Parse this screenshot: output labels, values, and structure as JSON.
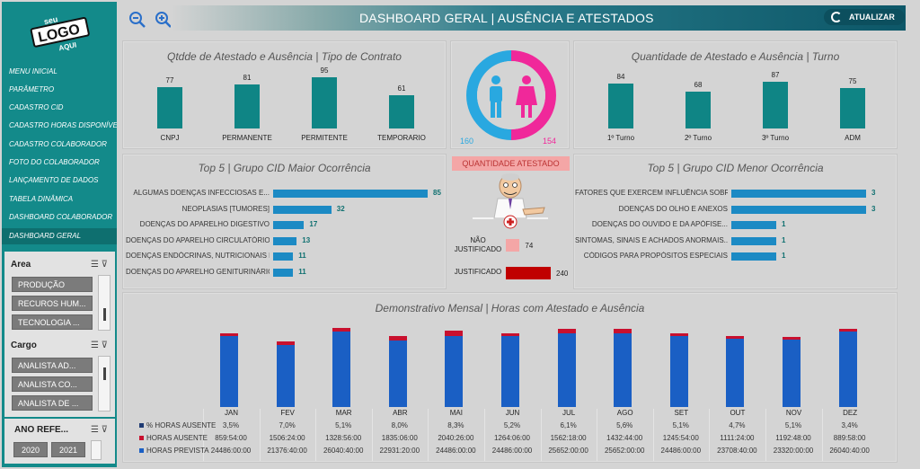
{
  "header": {
    "title": "DASHBOARD GERAL | AUSÊNCIA E ATESTADOS",
    "refresh_label": "ATUALIZAR",
    "colors": {
      "accent": "#138a8a",
      "dark": "#0d5768"
    }
  },
  "logo": {
    "top": "seu",
    "main": "LOGO",
    "bottom": "AQUI"
  },
  "menu": [
    "MENU INICIAL",
    "PARÂMETRO",
    "CADASTRO CID",
    "CADASTRO HORAS DISPONÍVEL",
    "CADASTRO COLABORADOR",
    "FOTO DO COLABORADOR",
    "LANÇAMENTO DE DADOS",
    "TABELA DINÂMICA",
    "DASHBOARD COLABORADOR",
    "DASHBOARD GERAL"
  ],
  "slicers": {
    "area": {
      "title": "Area",
      "items": [
        "PRODUÇÃO",
        "RECUROS HUM...",
        "TECNOLOGIA ..."
      ]
    },
    "cargo": {
      "title": "Cargo",
      "items": [
        "ANALISTA AD...",
        "ANALISTA CO...",
        "ANALISTA DE ..."
      ]
    },
    "ano": {
      "title": "ANO REFE...",
      "items": [
        "2020",
        "2021"
      ]
    }
  },
  "contract_chart": {
    "title": "Qtdde de Atestado e Ausência | Tipo de Contrato",
    "chart_data": {
      "type": "bar",
      "categories": [
        "CNPJ",
        "PERMANENTE",
        "PERMITENTE",
        "TEMPORARIO"
      ],
      "values": [
        77,
        81,
        95,
        61
      ]
    }
  },
  "gender": {
    "male": "160",
    "female": "154",
    "male_color": "#29a8e0",
    "female_color": "#f0289a"
  },
  "shift_chart": {
    "title": "Quantidade de Atestado e Ausência | Turno",
    "chart_data": {
      "type": "bar",
      "categories": [
        "1º Turno",
        "2º Turno",
        "3º Turno",
        "ADM"
      ],
      "values": [
        84,
        68,
        87,
        75
      ]
    }
  },
  "top5_major": {
    "title": "Top 5 | Grupo CID Maior Ocorrência",
    "chart_data": {
      "type": "bar",
      "categories": [
        "ALGUMAS DOENÇAS INFECCIOSAS E...",
        "NEOPLASIAS [TUMORES]",
        "DOENÇAS DO APARELHO DIGESTIVO",
        "DOENÇAS DO APARELHO CIRCULATÓRIO",
        "DOENÇAS ENDÓCRINAS, NUTRICIONAIS E...",
        "DOENÇAS DO APARELHO GENITURINÁRIO"
      ],
      "values": [
        85,
        32,
        17,
        13,
        11,
        11
      ]
    }
  },
  "quantity_atestado": {
    "title": "QUANTIDADE ATESTADO",
    "chart_data": {
      "type": "bar",
      "categories": [
        "NÃO JUSTIFICADO",
        "JUSTIFICADO"
      ],
      "values": [
        74,
        240
      ]
    },
    "label_not_justified_1": "NÃO",
    "label_not_justified_2": "JUSTIFICADO",
    "label_justified": "JUSTIFICADO"
  },
  "top5_minor": {
    "title": "Top 5 | Grupo CID Menor Ocorrência",
    "chart_data": {
      "type": "bar",
      "categories": [
        "FATORES QUE EXERCEM INFLUÊNCIA SOBRE...",
        "DOENÇAS DO OLHO E ANEXOS",
        "DOENÇAS DO OUVIDO E DA APÓFISE...",
        "SINTOMAS, SINAIS E ACHADOS ANORMAIS...",
        "CÓDIGOS PARA PROPÓSITOS ESPECIAIS"
      ],
      "values": [
        3,
        3,
        1,
        1,
        1
      ]
    }
  },
  "monthly": {
    "title": "Demonstrativo Mensal | Horas com Atestado e Ausência",
    "chart_data": {
      "type": "bar",
      "categories": [
        "JAN",
        "FEV",
        "MAR",
        "ABR",
        "MAI",
        "JUN",
        "JUL",
        "AGO",
        "SET",
        "OUT",
        "NOV",
        "DEZ"
      ],
      "series": [
        {
          "name": "% HORAS AUSENTE",
          "values": [
            "3,5%",
            "7,0%",
            "5,1%",
            "8,0%",
            "8,3%",
            "5,2%",
            "6,1%",
            "5,6%",
            "5,1%",
            "4,7%",
            "5,1%",
            "3,4%"
          ]
        },
        {
          "name": "HORAS AUSENTE",
          "values": [
            "859:54:00",
            "1506:24:00",
            "1328:56:00",
            "1835:06:00",
            "2040:26:00",
            "1264:06:00",
            "1562:18:00",
            "1432:44:00",
            "1245:54:00",
            "1111:24:00",
            "1192:48:00",
            "889:58:00"
          ]
        },
        {
          "name": "HORAS PREVISTA",
          "values": [
            "24486:00:00",
            "21376:40:00",
            "26040:40:00",
            "22931:20:00",
            "24486:00:00",
            "24486:00:00",
            "25652:00:00",
            "25652:00:00",
            "24486:00:00",
            "23708:40:00",
            "23320:00:00",
            "26040:40:00"
          ]
        }
      ],
      "prevista_hours": [
        24486,
        21377,
        26041,
        22931,
        24486,
        24486,
        25652,
        25652,
        24486,
        23709,
        23320,
        26041
      ],
      "ausente_hours": [
        860,
        1506,
        1329,
        1835,
        2040,
        1264,
        1562,
        1433,
        1246,
        1111,
        1193,
        890
      ],
      "colors": {
        "prevista": "#1a5fc4",
        "ausente": "#c8102e",
        "pct": "#1f3b73"
      }
    }
  }
}
